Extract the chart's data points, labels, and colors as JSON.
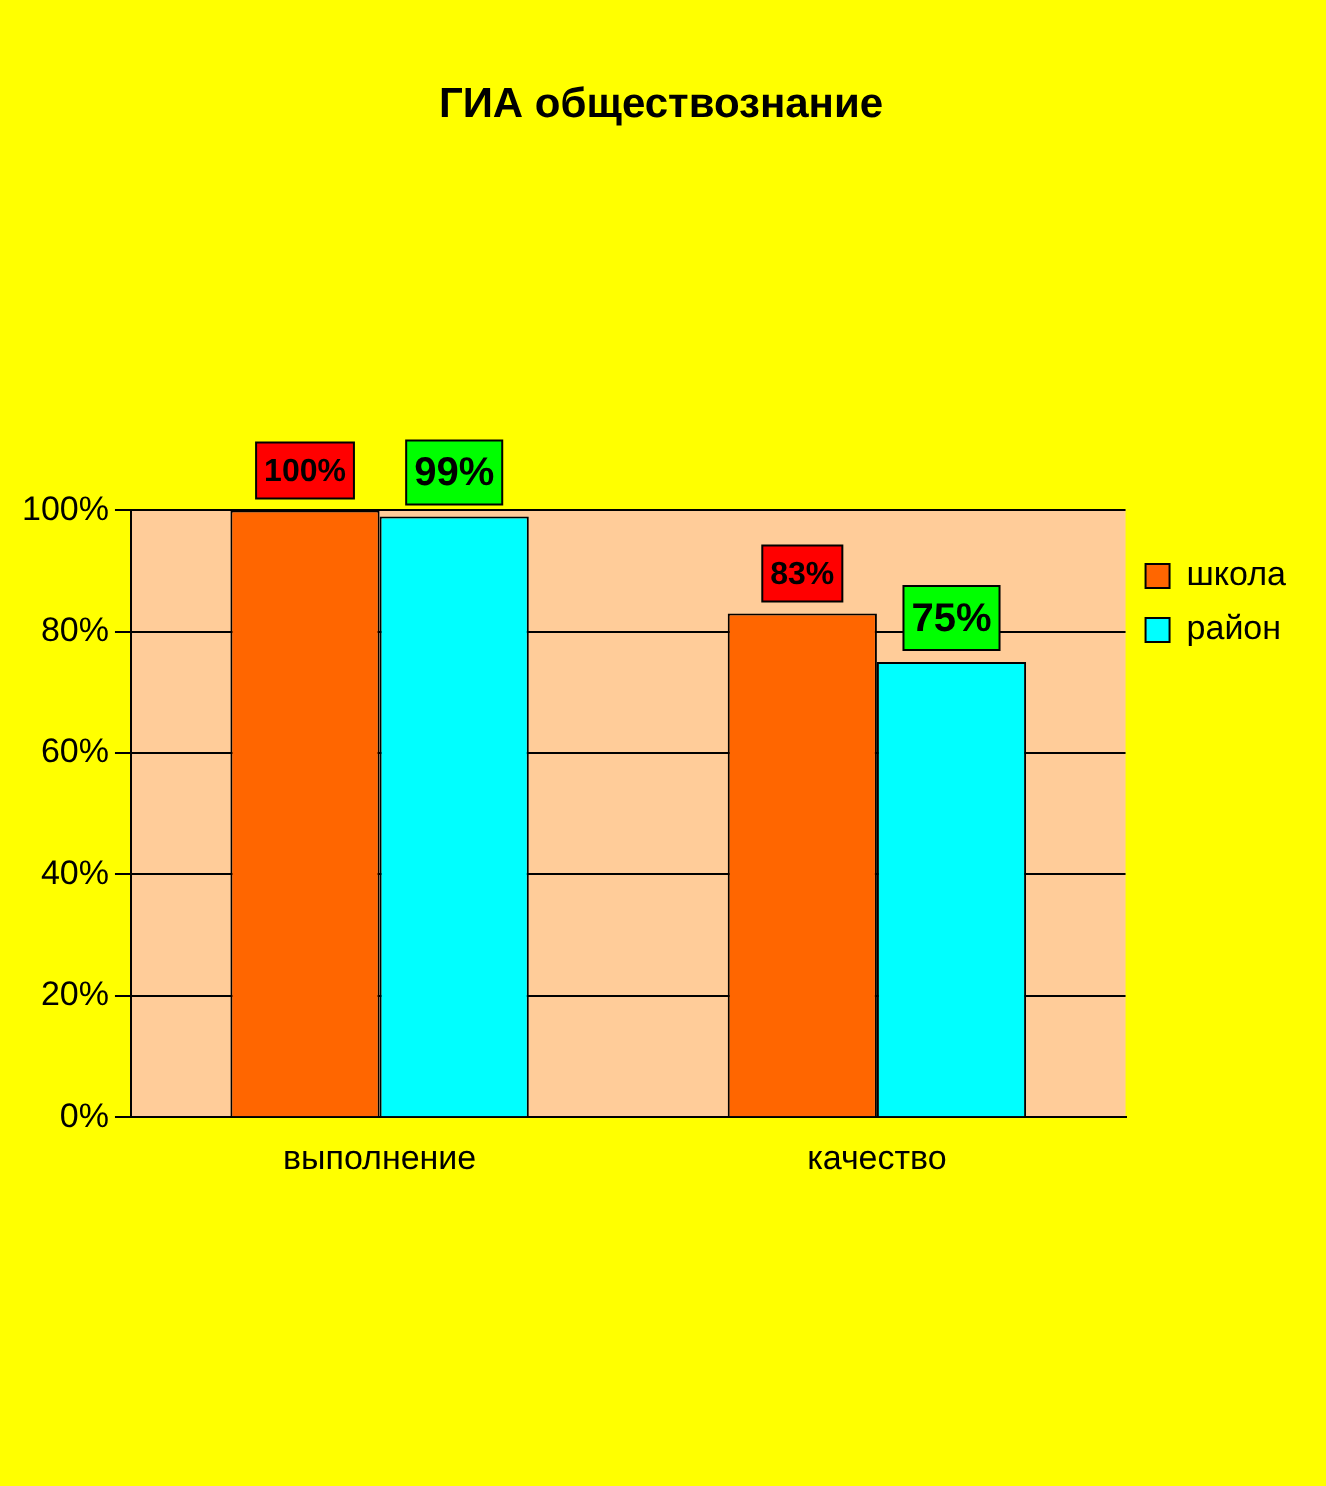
{
  "chart_data": {
    "type": "bar",
    "title": "ГИА обществознание",
    "categories": [
      "выполнение",
      "качество"
    ],
    "series": [
      {
        "name": "школа",
        "color": "#ff6600",
        "values": [
          100,
          83
        ],
        "value_labels": [
          "100%",
          "83%"
        ]
      },
      {
        "name": "район",
        "color": "#00ffff",
        "values": [
          99,
          75
        ],
        "value_labels": [
          "99%",
          "75%"
        ]
      }
    ],
    "ylim": [
      0,
      100
    ],
    "yticks": [
      {
        "value": 0,
        "label": "0%"
      },
      {
        "value": 20,
        "label": "20%"
      },
      {
        "value": 40,
        "label": "40%"
      },
      {
        "value": 60,
        "label": "60%"
      },
      {
        "value": 80,
        "label": "80%"
      },
      {
        "value": 100,
        "label": "100%"
      }
    ],
    "grid": "y",
    "legend": "right"
  }
}
